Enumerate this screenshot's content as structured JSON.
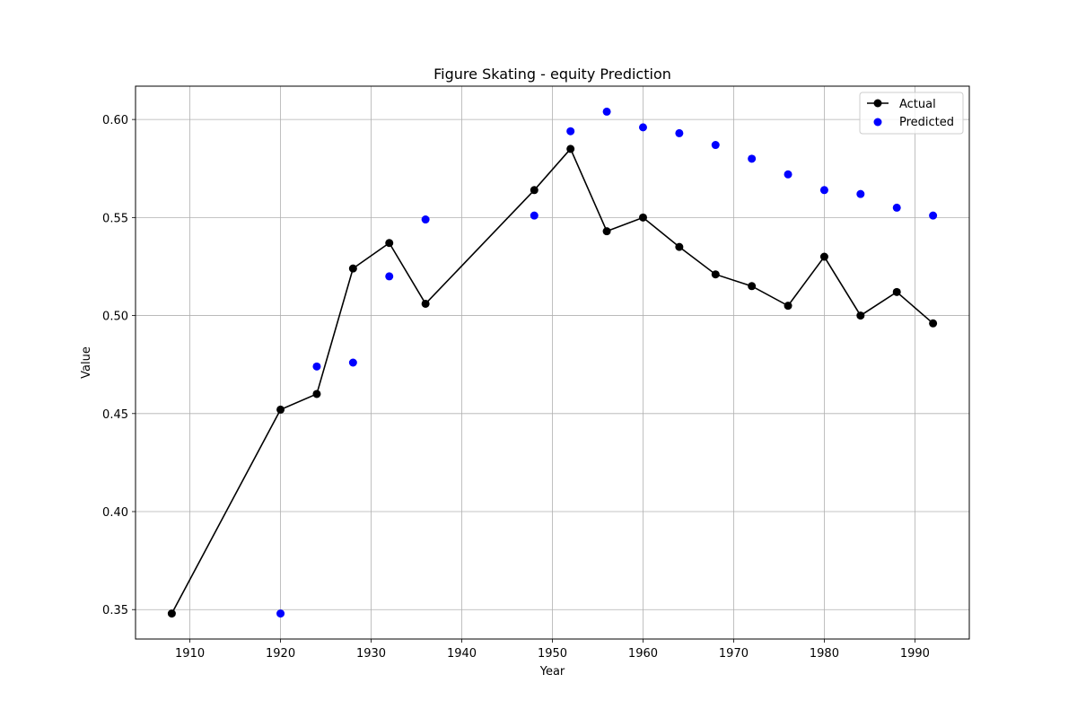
{
  "chart_data": {
    "type": "line",
    "title": "Figure Skating - equity Prediction",
    "xlabel": "Year",
    "ylabel": "Value",
    "xlim": [
      1904,
      1996
    ],
    "ylim": [
      0.335,
      0.617
    ],
    "xticks": [
      1910,
      1920,
      1930,
      1940,
      1950,
      1960,
      1970,
      1980,
      1990
    ],
    "yticks": [
      0.35,
      0.4,
      0.45,
      0.5,
      0.55,
      0.6
    ],
    "ytick_labels": [
      "0.35",
      "0.40",
      "0.45",
      "0.50",
      "0.55",
      "0.60"
    ],
    "grid": true,
    "legend_position": "top-right",
    "series": [
      {
        "name": "Actual",
        "style": "line-marker",
        "color": "#000000",
        "x": [
          1908,
          1920,
          1924,
          1928,
          1932,
          1936,
          1948,
          1952,
          1956,
          1960,
          1964,
          1968,
          1972,
          1976,
          1980,
          1984,
          1988,
          1992
        ],
        "y": [
          0.348,
          0.452,
          0.46,
          0.524,
          0.537,
          0.506,
          0.564,
          0.585,
          0.543,
          0.55,
          0.535,
          0.521,
          0.515,
          0.505,
          0.53,
          0.5,
          0.512,
          0.496
        ]
      },
      {
        "name": "Predicted",
        "style": "scatter",
        "color": "#0000ff",
        "x": [
          1920,
          1924,
          1928,
          1932,
          1936,
          1948,
          1952,
          1956,
          1960,
          1964,
          1968,
          1972,
          1976,
          1980,
          1984,
          1988,
          1992
        ],
        "y": [
          0.348,
          0.474,
          0.476,
          0.52,
          0.549,
          0.551,
          0.594,
          0.604,
          0.596,
          0.593,
          0.587,
          0.58,
          0.572,
          0.564,
          0.562,
          0.555,
          0.551
        ]
      }
    ]
  }
}
